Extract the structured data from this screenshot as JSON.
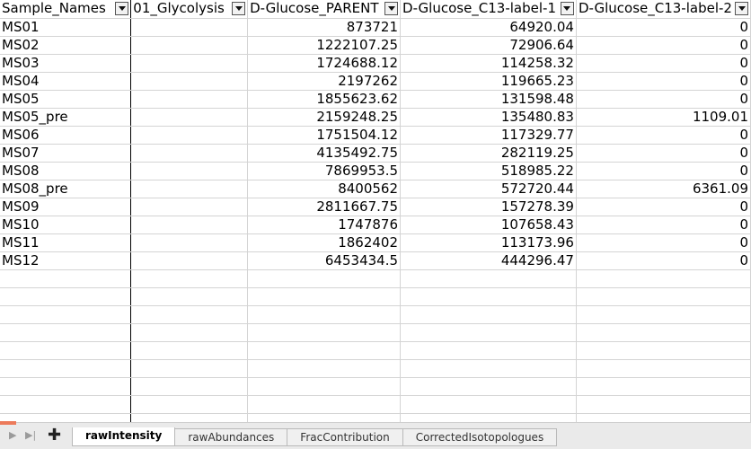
{
  "sheet": {
    "headers": [
      "Sample_Names",
      "01_Glycolysis",
      "D-Glucose_PARENT",
      "D-Glucose_C13-label-1",
      "D-Glucose_C13-label-2"
    ],
    "rows": [
      [
        "MS01",
        "",
        "873721",
        "64920.04",
        "0"
      ],
      [
        "MS02",
        "",
        "1222107.25",
        "72906.64",
        "0"
      ],
      [
        "MS03",
        "",
        "1724688.12",
        "114258.32",
        "0"
      ],
      [
        "MS04",
        "",
        "2197262",
        "119665.23",
        "0"
      ],
      [
        "MS05",
        "",
        "1855623.62",
        "131598.48",
        "0"
      ],
      [
        "MS05_pre",
        "",
        "2159248.25",
        "135480.83",
        "1109.01"
      ],
      [
        "MS06",
        "",
        "1751504.12",
        "117329.77",
        "0"
      ],
      [
        "MS07",
        "",
        "4135492.75",
        "282119.25",
        "0"
      ],
      [
        "MS08",
        "",
        "7869953.5",
        "518985.22",
        "0"
      ],
      [
        "MS08_pre",
        "",
        "8400562",
        "572720.44",
        "6361.09"
      ],
      [
        "MS09",
        "",
        "2811667.75",
        "157278.39",
        "0"
      ],
      [
        "MS10",
        "",
        "1747876",
        "107658.43",
        "0"
      ],
      [
        "MS11",
        "",
        "1862402",
        "113173.96",
        "0"
      ],
      [
        "MS12",
        "",
        "6453434.5",
        "444296.47",
        "0"
      ]
    ],
    "empty_rows": 9
  },
  "tabs": [
    {
      "label": "rawIntensity",
      "active": true
    },
    {
      "label": "rawAbundances",
      "active": false
    },
    {
      "label": "FracContribution",
      "active": false
    },
    {
      "label": "CorrectedIsotopologues",
      "active": false
    }
  ],
  "tabbar": {
    "nav_first_glyph": "▶",
    "nav_last_glyph": "▶|",
    "add_glyph": "✚",
    "accent_color": "#ec7a5a"
  }
}
